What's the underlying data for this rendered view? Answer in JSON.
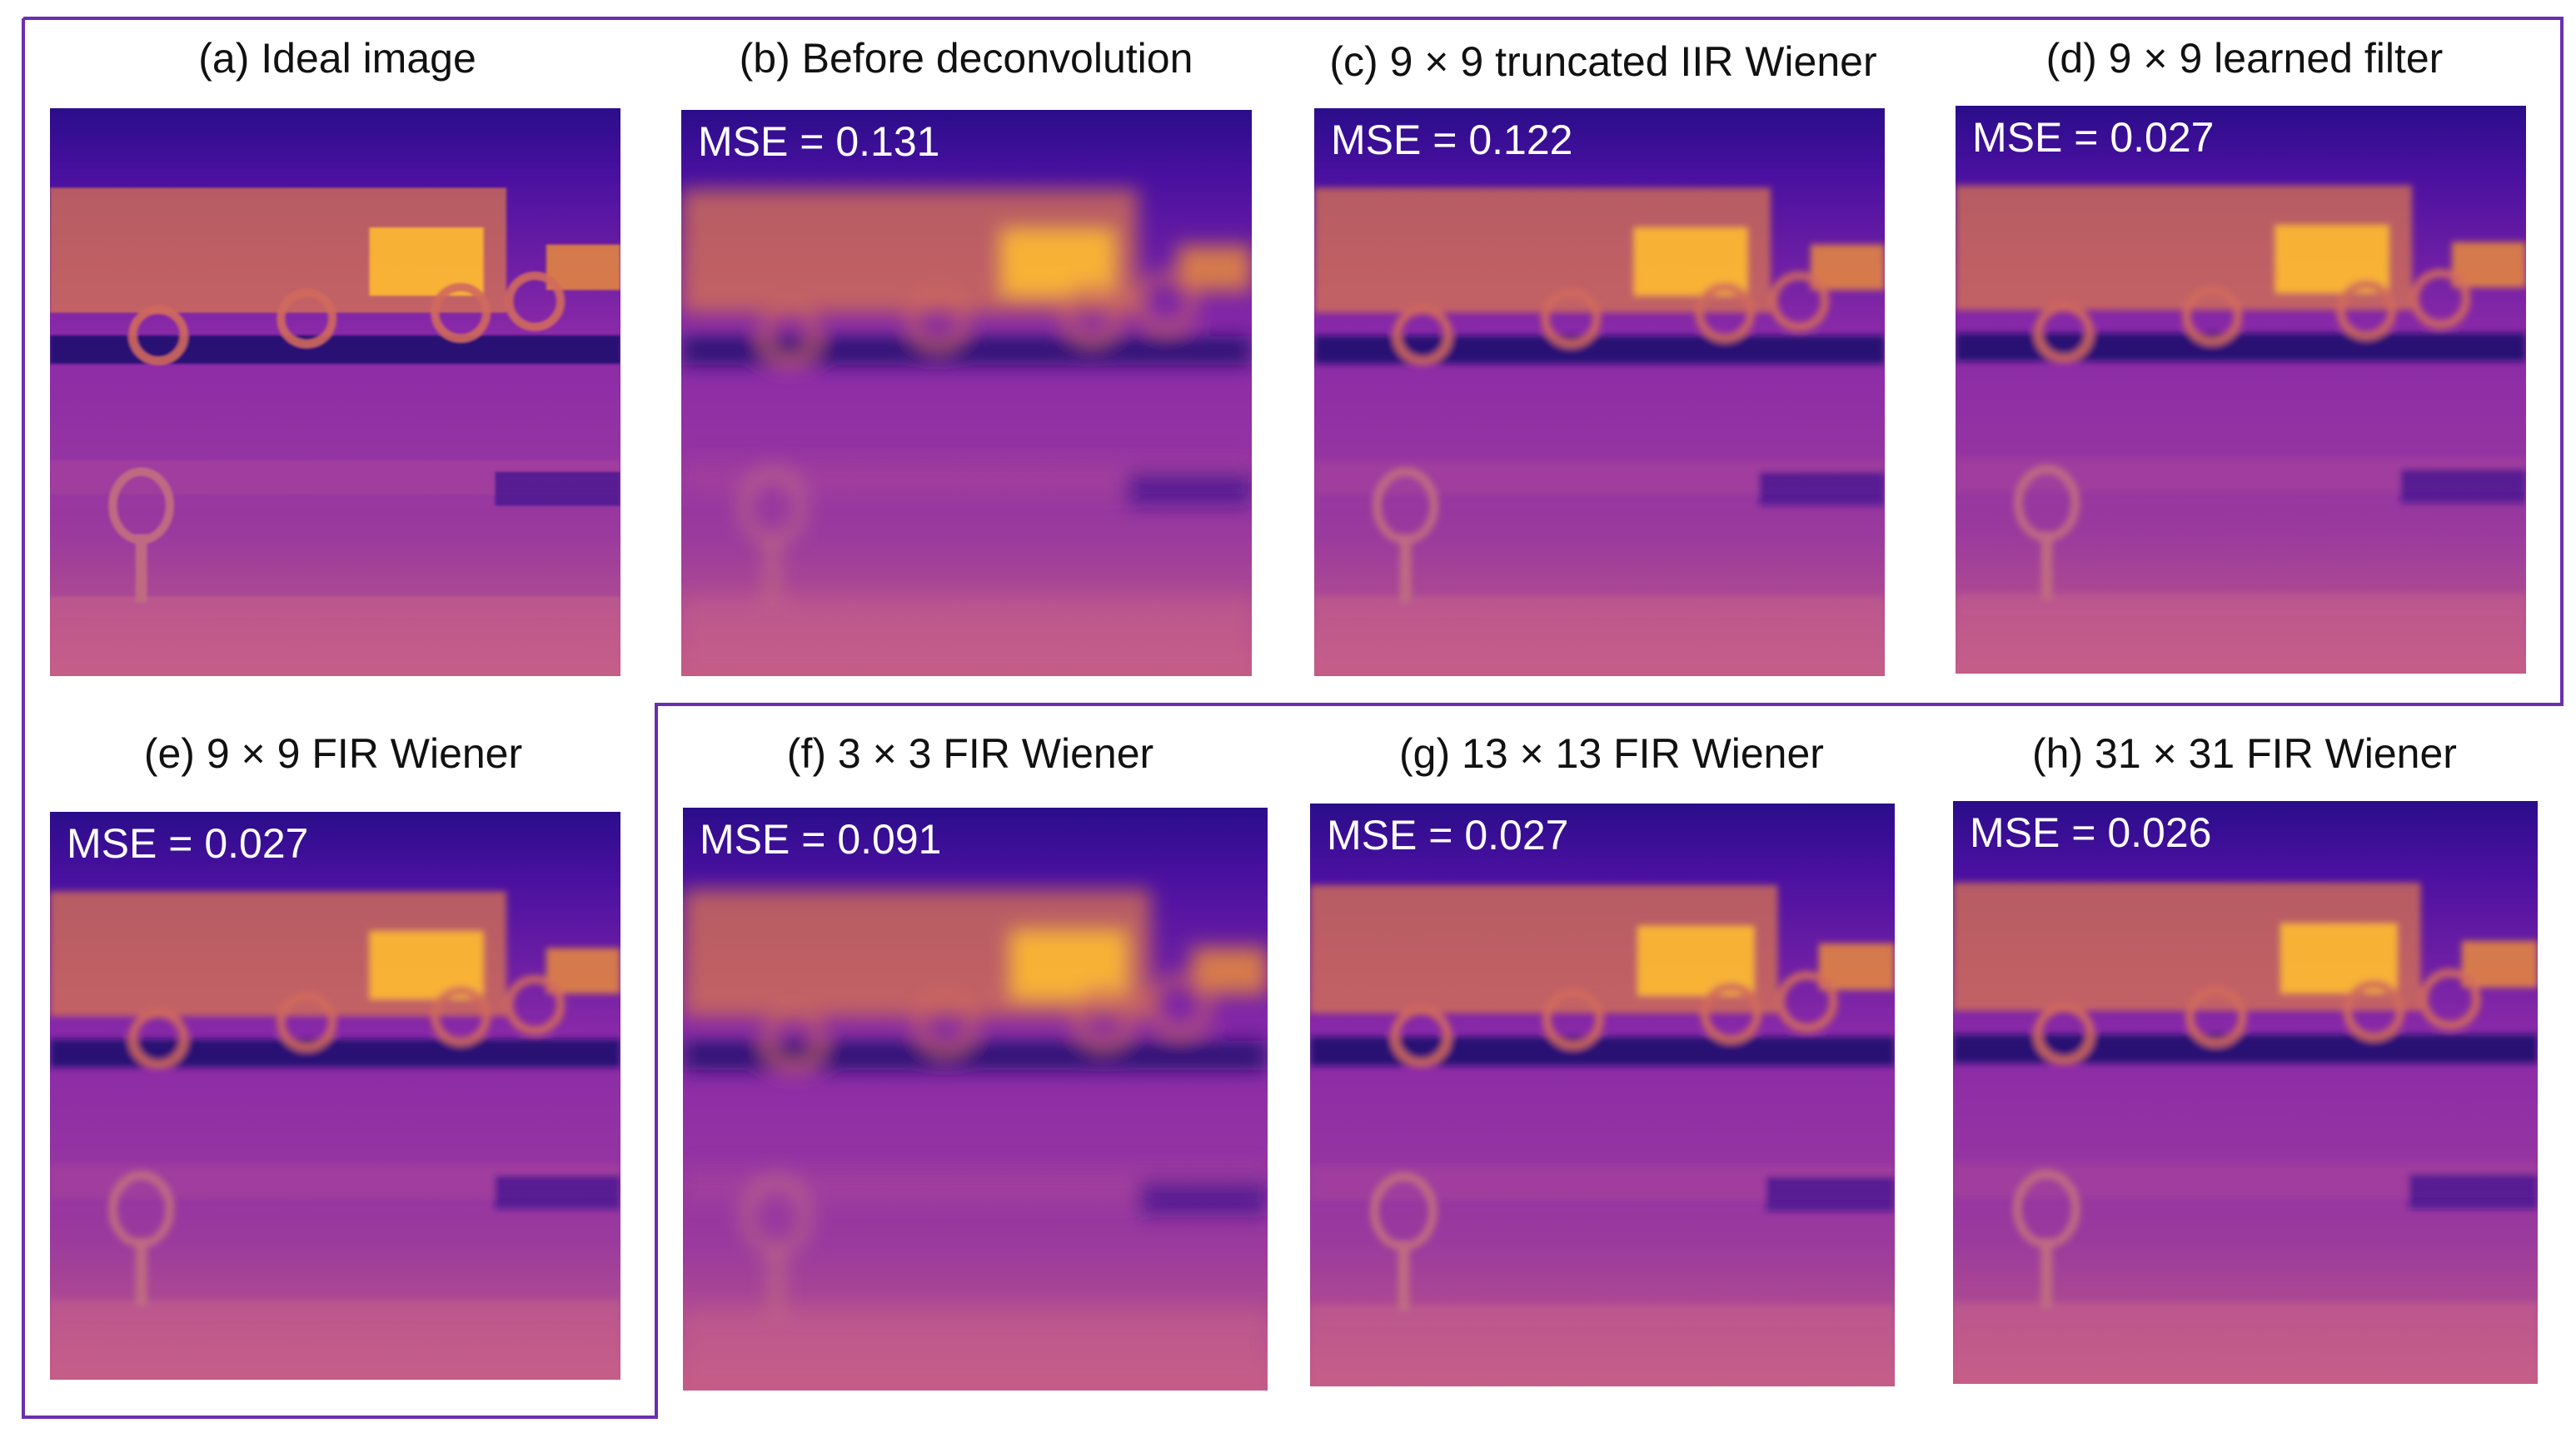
{
  "frame_color": "#6a2fb0",
  "panels": [
    {
      "id": "a",
      "title": "(a) Ideal image",
      "mse": "",
      "sharpness": "ideal"
    },
    {
      "id": "b",
      "title": "(b) Before deconvolution",
      "mse": "MSE = 0.131",
      "sharpness": "blurred"
    },
    {
      "id": "c",
      "title": "(c) 9 × 9 truncated IIR Wiener",
      "mse": "MSE = 0.122",
      "sharpness": "restored"
    },
    {
      "id": "d",
      "title": "(d) 9 × 9 learned filter",
      "mse": "MSE = 0.027",
      "sharpness": "restored"
    },
    {
      "id": "e",
      "title": "(e) 9 × 9 FIR Wiener",
      "mse": "MSE = 0.027",
      "sharpness": "restored"
    },
    {
      "id": "f",
      "title": "(f) 3 × 3 FIR Wiener",
      "mse": "MSE = 0.091",
      "sharpness": "blurred"
    },
    {
      "id": "g",
      "title": "(g) 13 × 13 FIR Wiener",
      "mse": "MSE = 0.027",
      "sharpness": "restored"
    },
    {
      "id": "h",
      "title": "(h) 31 × 31 FIR Wiener",
      "mse": "MSE = 0.026",
      "sharpness": "restored"
    }
  ]
}
